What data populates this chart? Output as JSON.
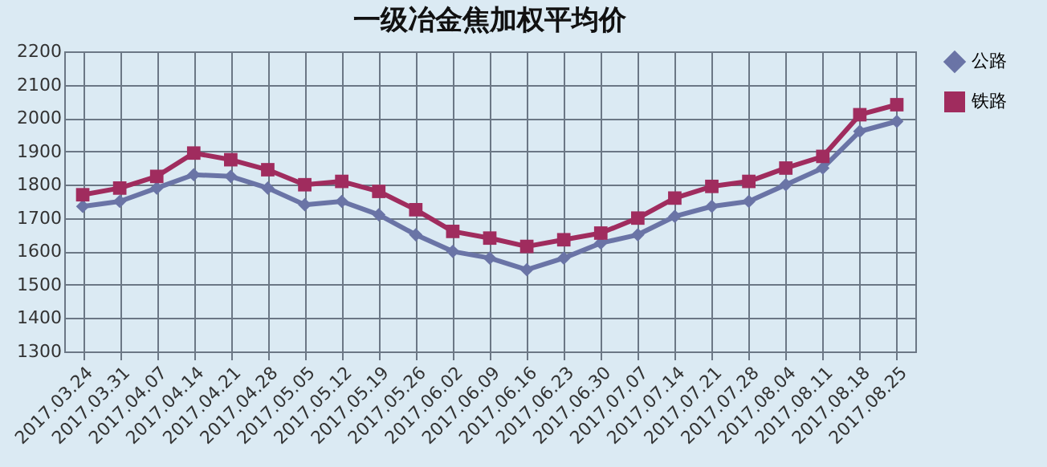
{
  "chart_data": {
    "type": "line",
    "title": "一级冶金焦加权平均价",
    "categories": [
      "2017.03.24",
      "2017.03.31",
      "2017.04.07",
      "2017.04.14",
      "2017.04.21",
      "2017.04.28",
      "2017.05.05",
      "2017.05.12",
      "2017.05.19",
      "2017.05.26",
      "2017.06.02",
      "2017.06.09",
      "2017.06.16",
      "2017.06.23",
      "2017.06.30",
      "2017.07.07",
      "2017.07.14",
      "2017.07.21",
      "2017.07.28",
      "2017.08.04",
      "2017.08.11",
      "2017.08.18",
      "2017.08.25"
    ],
    "series": [
      {
        "name": "公路",
        "color": "#6a74a6",
        "marker": "diamond",
        "values": [
          1735,
          1750,
          1790,
          1830,
          1825,
          1790,
          1740,
          1750,
          1710,
          1650,
          1600,
          1580,
          1545,
          1580,
          1625,
          1650,
          1705,
          1735,
          1750,
          1800,
          1850,
          1960,
          1990
        ]
      },
      {
        "name": "铁路",
        "color": "#a02c5e",
        "marker": "square",
        "values": [
          1770,
          1790,
          1825,
          1895,
          1875,
          1845,
          1800,
          1810,
          1780,
          1725,
          1660,
          1640,
          1615,
          1635,
          1655,
          1700,
          1760,
          1795,
          1810,
          1850,
          1885,
          2010,
          2040
        ]
      }
    ],
    "ylim": [
      1300,
      2200
    ],
    "yticks": [
      1300,
      1400,
      1500,
      1600,
      1700,
      1800,
      1900,
      2000,
      2100,
      2200
    ],
    "grid": true,
    "legend": "right",
    "line_style": "solid"
  }
}
